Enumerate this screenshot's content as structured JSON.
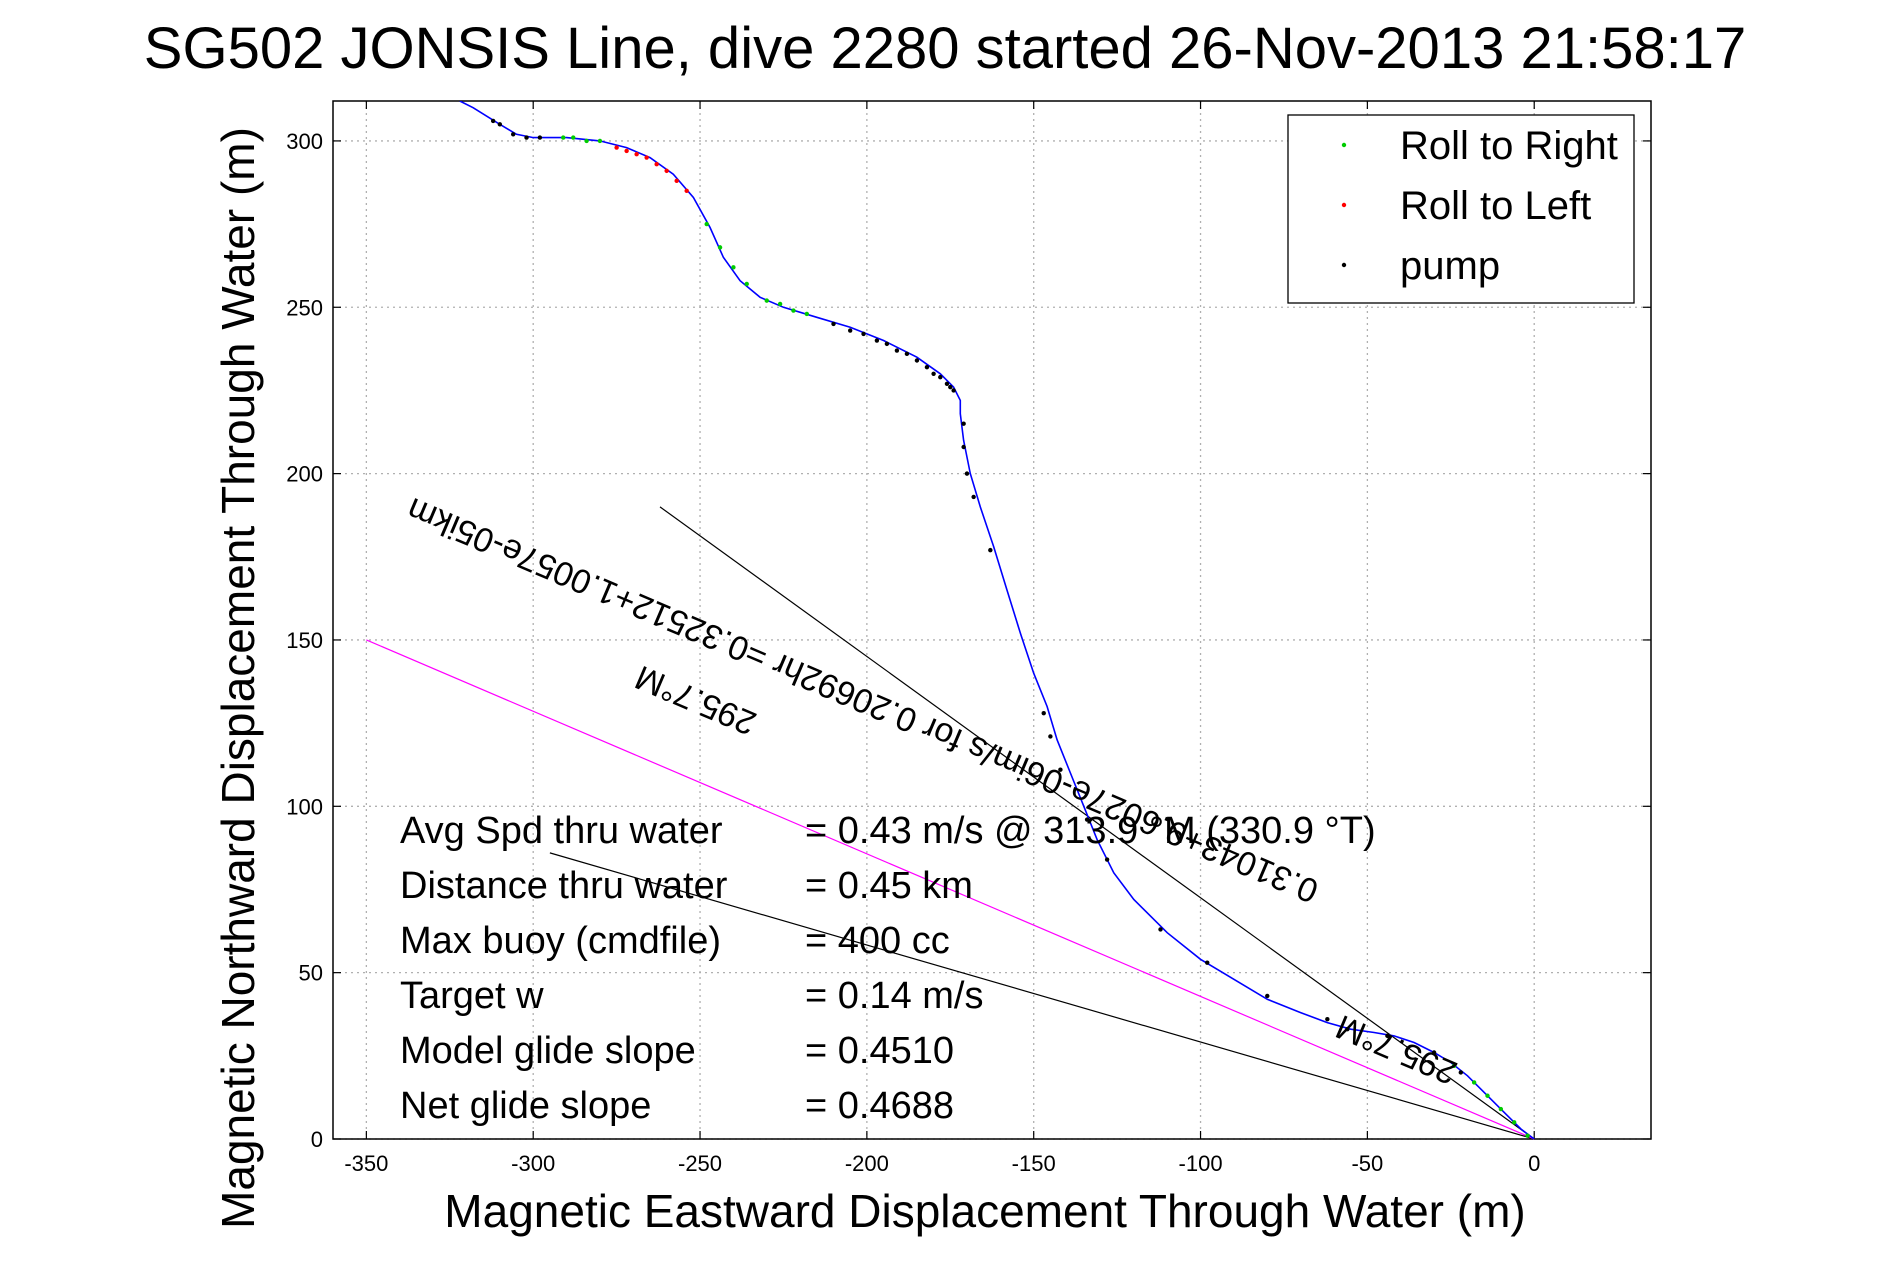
{
  "chart_data": {
    "type": "line",
    "title": "SG502 JONSIS Line, dive 2280 started 26-Nov-2013 21:58:17",
    "xlabel": "Magnetic Eastward Displacement Through Water (m)",
    "ylabel": "Magnetic Northward Displacement Through Water (m)",
    "xlim": [
      -360,
      35
    ],
    "ylim": [
      0,
      312
    ],
    "xticks": [
      -350,
      -300,
      -250,
      -200,
      -150,
      -100,
      -50,
      0
    ],
    "yticks": [
      0,
      50,
      100,
      150,
      200,
      250,
      300
    ],
    "grid": true,
    "legend": {
      "position": "top-right",
      "entries": [
        {
          "label": "Roll to Right",
          "color": "#00cc00"
        },
        {
          "label": "Roll to Left",
          "color": "#ff0000"
        },
        {
          "label": "pump",
          "color": "#000000"
        }
      ]
    },
    "track": {
      "color": "#0000ff",
      "points": [
        [
          0,
          0
        ],
        [
          -4,
          3
        ],
        [
          -8,
          7
        ],
        [
          -12,
          11
        ],
        [
          -16,
          15
        ],
        [
          -20,
          19
        ],
        [
          -25,
          23
        ],
        [
          -30,
          26
        ],
        [
          -36,
          29
        ],
        [
          -42,
          31
        ],
        [
          -48,
          32
        ],
        [
          -55,
          33
        ],
        [
          -62,
          35
        ],
        [
          -70,
          38
        ],
        [
          -80,
          42
        ],
        [
          -90,
          48
        ],
        [
          -100,
          54
        ],
        [
          -110,
          62
        ],
        [
          -120,
          72
        ],
        [
          -126,
          80
        ],
        [
          -131,
          90
        ],
        [
          -135,
          100
        ],
        [
          -139,
          110
        ],
        [
          -143,
          120
        ],
        [
          -146,
          130
        ],
        [
          -150,
          140
        ],
        [
          -154,
          152
        ],
        [
          -158,
          165
        ],
        [
          -162,
          178
        ],
        [
          -166,
          190
        ],
        [
          -169,
          200
        ],
        [
          -171,
          210
        ],
        [
          -172,
          218
        ],
        [
          -172,
          222
        ],
        [
          -174,
          226
        ],
        [
          -178,
          230
        ],
        [
          -185,
          235
        ],
        [
          -195,
          240
        ],
        [
          -205,
          244
        ],
        [
          -215,
          247
        ],
        [
          -225,
          250
        ],
        [
          -232,
          253
        ],
        [
          -238,
          258
        ],
        [
          -243,
          265
        ],
        [
          -247,
          274
        ],
        [
          -252,
          283
        ],
        [
          -258,
          290
        ],
        [
          -265,
          295
        ],
        [
          -272,
          298
        ],
        [
          -280,
          300
        ],
        [
          -290,
          301
        ],
        [
          -300,
          301
        ],
        [
          -305,
          302
        ],
        [
          -310,
          305
        ],
        [
          -318,
          310
        ],
        [
          -322,
          312
        ]
      ]
    },
    "markers": {
      "pump": [
        [
          -174,
          225
        ],
        [
          -175,
          226
        ],
        [
          -176,
          227
        ],
        [
          -178,
          229
        ],
        [
          -180,
          230
        ],
        [
          -182,
          232
        ],
        [
          -185,
          234
        ],
        [
          -188,
          236
        ],
        [
          -191,
          237
        ],
        [
          -194,
          239
        ],
        [
          -197,
          240
        ],
        [
          -201,
          242
        ],
        [
          -205,
          243
        ],
        [
          -210,
          245
        ],
        [
          -171,
          215
        ],
        [
          -171,
          208
        ],
        [
          -170,
          200
        ],
        [
          -168,
          193
        ],
        [
          -163,
          177
        ],
        [
          -147,
          128
        ],
        [
          -145,
          121
        ],
        [
          -142,
          111
        ],
        [
          -134,
          96
        ],
        [
          -128,
          84
        ],
        [
          -112,
          63
        ],
        [
          -98,
          53
        ],
        [
          -80,
          43
        ],
        [
          -62,
          36
        ],
        [
          -56,
          33
        ],
        [
          -44,
          31
        ],
        [
          -30,
          26
        ],
        [
          -22,
          20
        ],
        [
          -298,
          301
        ],
        [
          -302,
          301
        ],
        [
          -306,
          302
        ],
        [
          -310,
          305
        ],
        [
          -312,
          306
        ]
      ],
      "roll_to_right": [
        [
          -2,
          1
        ],
        [
          -6,
          5
        ],
        [
          -10,
          9
        ],
        [
          -14,
          13
        ],
        [
          -18,
          17
        ],
        [
          -24,
          22
        ],
        [
          -236,
          257
        ],
        [
          -240,
          262
        ],
        [
          -244,
          268
        ],
        [
          -248,
          275
        ],
        [
          -230,
          252
        ],
        [
          -226,
          251
        ],
        [
          -222,
          249
        ],
        [
          -218,
          248
        ],
        [
          -280,
          300
        ],
        [
          -284,
          300
        ],
        [
          -288,
          301
        ],
        [
          -291,
          301
        ]
      ],
      "roll_to_left": [
        [
          -254,
          285
        ],
        [
          -257,
          288
        ],
        [
          -260,
          291
        ],
        [
          -263,
          293
        ],
        [
          -266,
          295
        ],
        [
          -269,
          296
        ],
        [
          -272,
          297
        ],
        [
          -275,
          298
        ]
      ]
    },
    "reference_lines": [
      {
        "from": [
          0,
          0
        ],
        "to": [
          -262,
          190
        ],
        "color": "#000000"
      },
      {
        "from": [
          0,
          0
        ],
        "to": [
          -295,
          86
        ],
        "color": "#000000"
      },
      {
        "from": [
          0,
          0
        ],
        "to": [
          -350,
          150
        ],
        "color": "#ff00ff"
      }
    ],
    "annotations": [
      {
        "text": "295.7°M",
        "at": [
          -250,
          135
        ],
        "rotation_deg": 203
      },
      {
        "text": "0.31043+9.6027e-06im/s for 0.20692hr =0.32512+1.0057e-05ikm",
        "at": [
          -200,
          135
        ],
        "rotation_deg": 203
      },
      {
        "text": "295.7°M",
        "at": [
          -40,
          30
        ],
        "rotation_deg": 203
      }
    ],
    "stats": [
      {
        "label": "Avg Spd thru water",
        "value": "=  0.43 m/s @ 313.9 °M (330.9 °T)"
      },
      {
        "label": "Distance thru water",
        "value": "=  0.45 km"
      },
      {
        "label": "Max buoy (cmdfile)",
        "value": "= 400 cc"
      },
      {
        "label": "Target w",
        "value": "= 0.14 m/s"
      },
      {
        "label": "Model glide slope",
        "value": "= 0.4510"
      },
      {
        "label": "Net glide slope",
        "value": "= 0.4688"
      }
    ]
  }
}
